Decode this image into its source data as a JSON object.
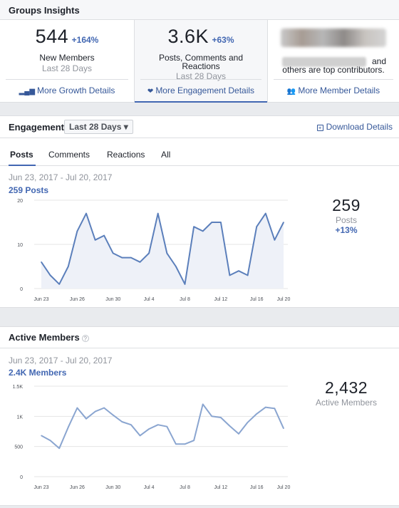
{
  "header": {
    "title": "Groups Insights"
  },
  "summary": {
    "members": {
      "value": "544",
      "change": "+164%",
      "label": "New Members",
      "period": "Last 28 Days",
      "link": "More Growth Details",
      "icon": "bar-chart-icon"
    },
    "engagement": {
      "value": "3.6K",
      "change": "+63%",
      "label_line1": "Posts, Comments and",
      "label_line2": "Reactions",
      "period": "Last 28 Days",
      "link": "More Engagement Details",
      "icon": "hearts-icon"
    },
    "contributors": {
      "and_text": "and",
      "text": "others are top contributors.",
      "link": "More Member Details",
      "icon": "people-icon"
    }
  },
  "engagement": {
    "title": "Engagement",
    "range_button": "Last 28 Days ▾",
    "download": "Download Details",
    "tabs": [
      "Posts",
      "Comments",
      "Reactions",
      "All"
    ],
    "active_tab": "Posts",
    "date_range": "Jun 23, 2017 - Jul 20, 2017",
    "count_label": "259 Posts",
    "stat_value": "259",
    "stat_label": "Posts",
    "stat_change": "+13%"
  },
  "active_members": {
    "title": "Active Members",
    "help_icon": "question-icon",
    "date_range": "Jun 23, 2017 - Jul 20, 2017",
    "count_label": "2.4K Members",
    "stat_value": "2,432",
    "stat_label": "Active Members"
  },
  "chart_data": [
    {
      "type": "area",
      "x_ticks": [
        "Jun 23",
        "Jun 26",
        "Jun 30",
        "Jul 4",
        "Jul 8",
        "Jul 12",
        "Jul 16",
        "Jul 20"
      ],
      "x_tick_index": [
        0,
        4,
        8,
        12,
        16,
        20,
        24,
        28
      ],
      "y_ticks": [
        "0",
        "10",
        "20"
      ],
      "ylim": [
        0,
        20
      ],
      "values": [
        6,
        3,
        1,
        5,
        13,
        17,
        11,
        12,
        8,
        7,
        7,
        6,
        8,
        17,
        8,
        5,
        1,
        14,
        13,
        15,
        15,
        3,
        4,
        3,
        14,
        17,
        11,
        15
      ],
      "color": "#5b7fbb"
    },
    {
      "type": "line",
      "x_ticks": [
        "Jun 23",
        "Jun 26",
        "Jun 30",
        "Jul 4",
        "Jul 8",
        "Jul 12",
        "Jul 16",
        "Jul 20"
      ],
      "x_tick_index": [
        0,
        4,
        8,
        12,
        16,
        20,
        24,
        28
      ],
      "y_ticks": [
        "0",
        "500",
        "1K",
        "1.5K"
      ],
      "ylim": [
        0,
        1500
      ],
      "values": [
        680,
        600,
        470,
        820,
        1140,
        960,
        1080,
        1140,
        1020,
        910,
        860,
        680,
        790,
        860,
        830,
        540,
        540,
        600,
        1200,
        1000,
        980,
        840,
        710,
        900,
        1040,
        1150,
        1130,
        800
      ],
      "color": "#8aa5d0"
    }
  ]
}
